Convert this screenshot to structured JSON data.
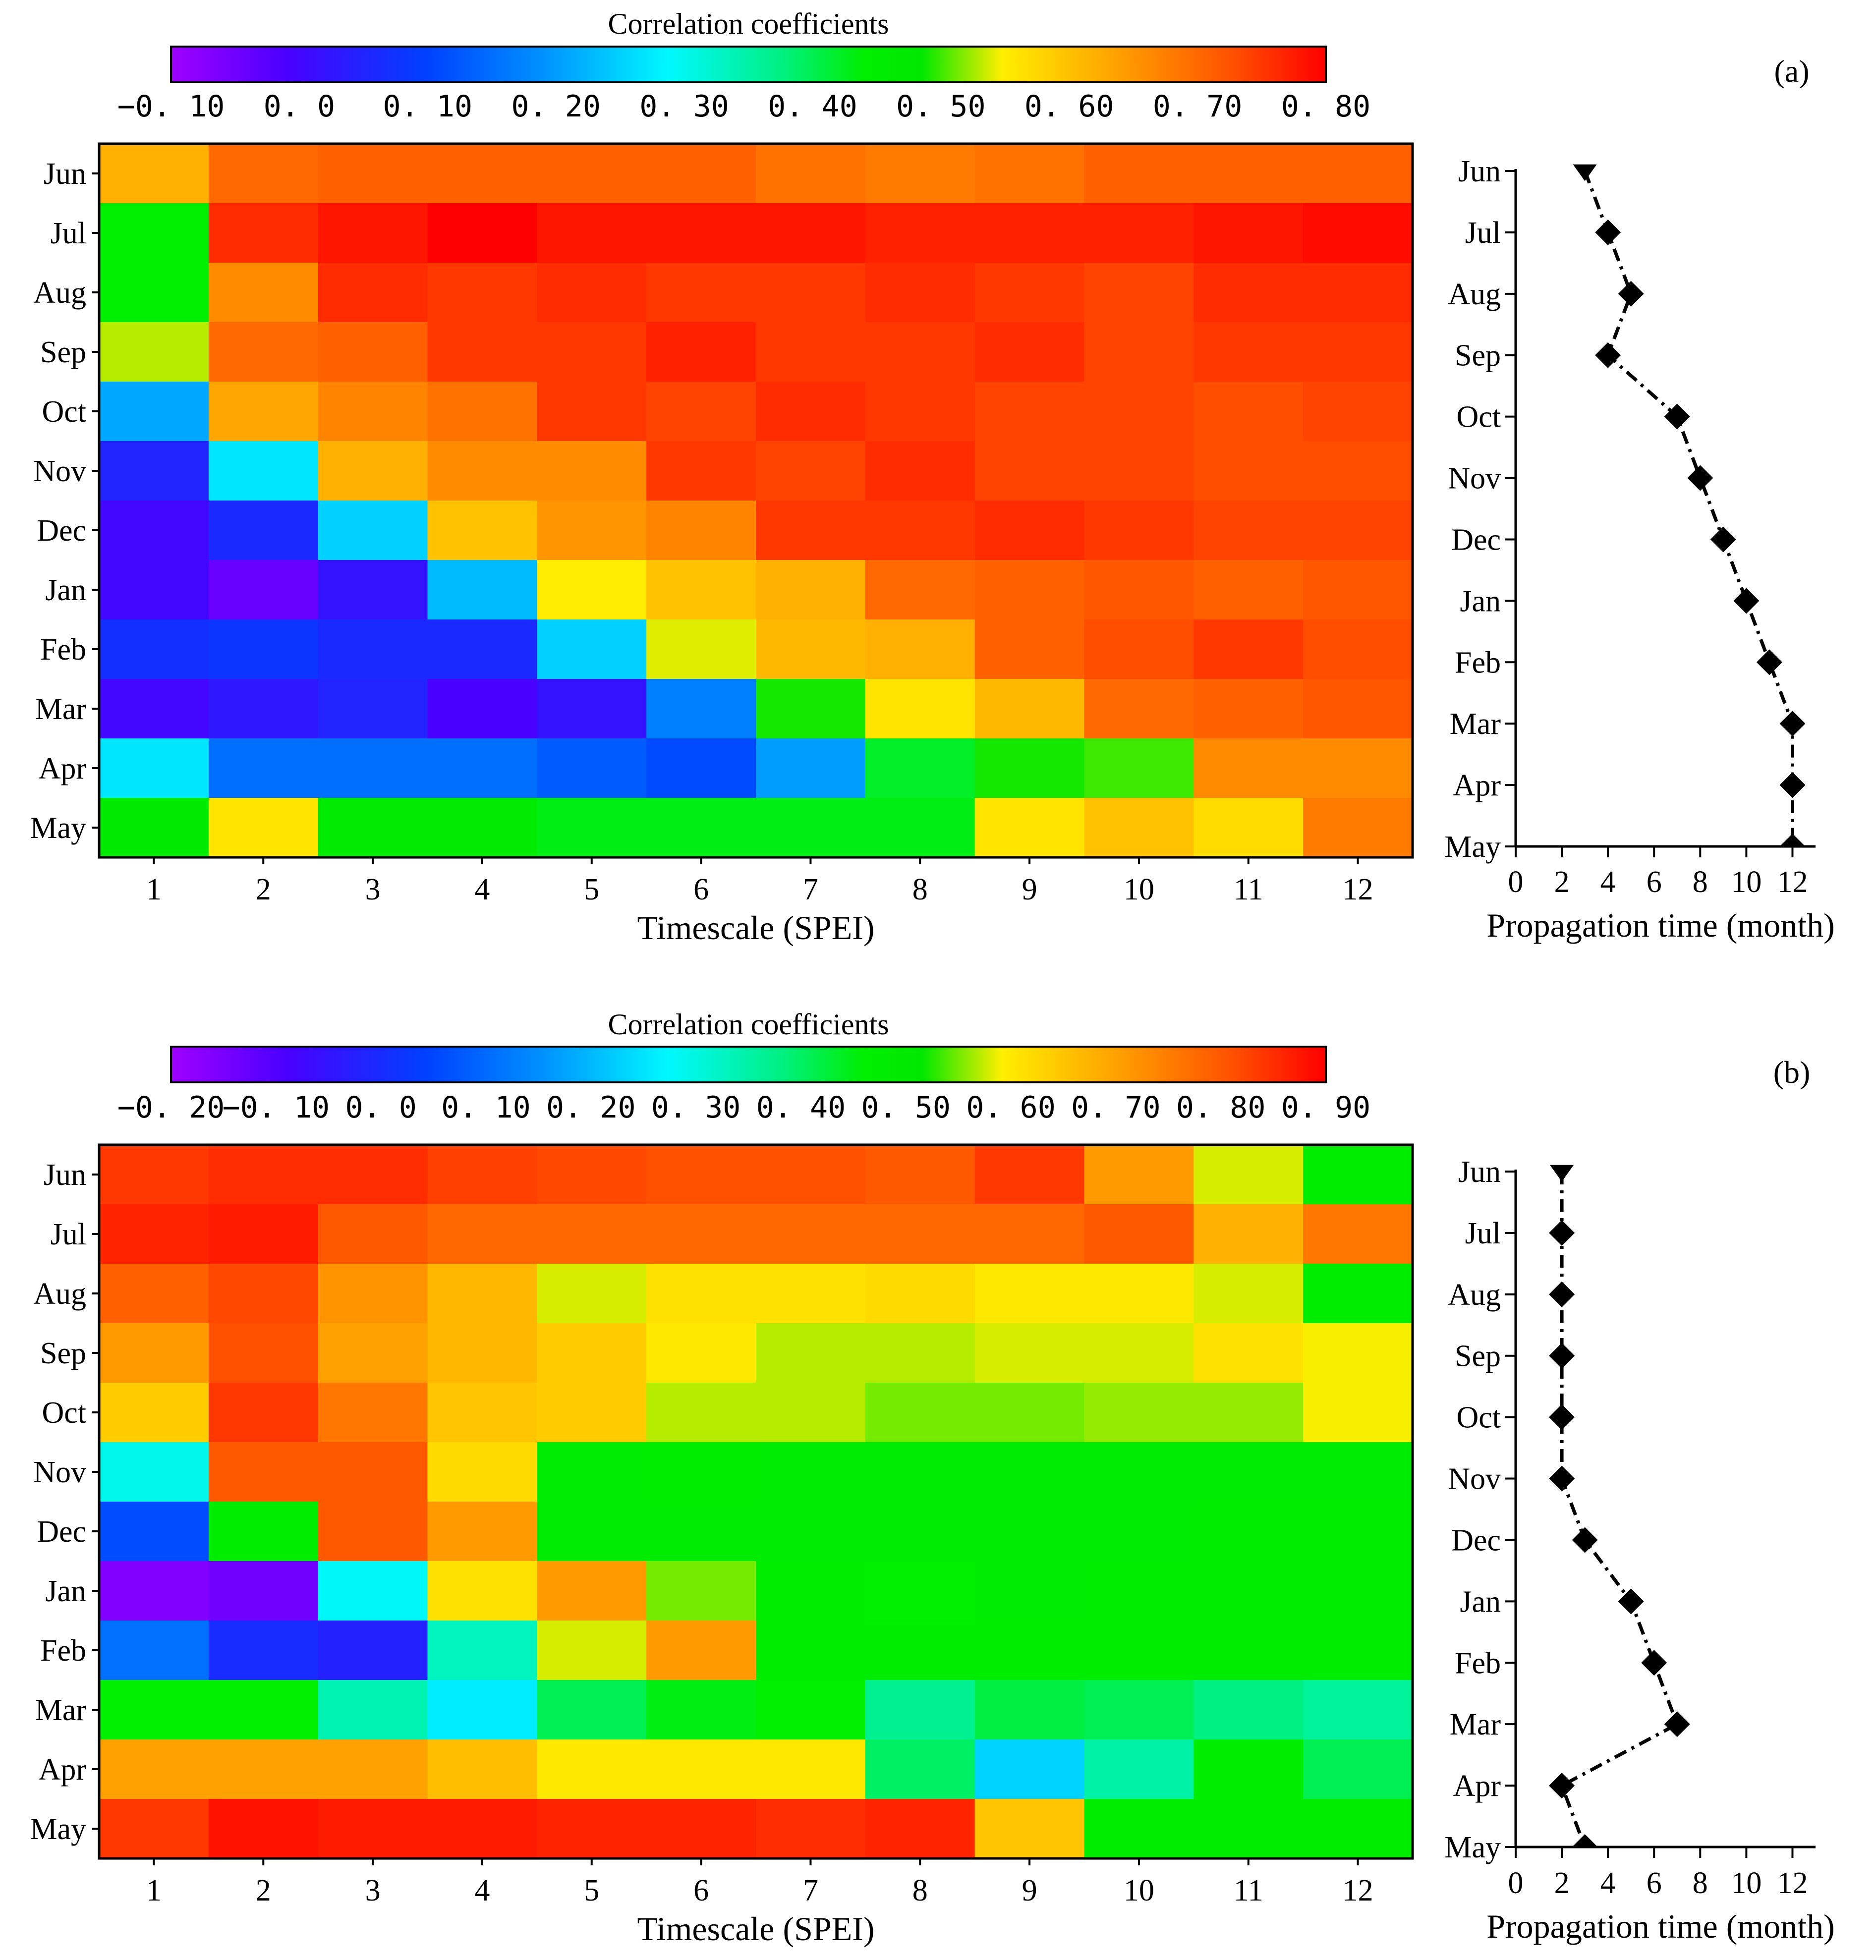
{
  "chart_data": [
    {
      "type": "heatmap",
      "panel_label": "(a)",
      "colorbar": {
        "title": "Correlation coefficients",
        "min": -0.1,
        "max": 0.8,
        "ticks": [
          -0.1,
          0.0,
          0.1,
          0.2,
          0.3,
          0.4,
          0.5,
          0.6,
          0.7,
          0.8
        ],
        "tick_labels": [
          "−0. 10",
          "0. 0",
          "0. 10",
          "0. 20",
          "0. 30",
          "0. 40",
          "0. 50",
          "0. 60",
          "0. 70",
          "0. 80"
        ]
      },
      "xlabel": "Timescale (SPEI)",
      "x": [
        1,
        2,
        3,
        4,
        5,
        6,
        7,
        8,
        9,
        10,
        11,
        12
      ],
      "y": [
        "Jun",
        "Jul",
        "Aug",
        "Sep",
        "Oct",
        "Nov",
        "Dec",
        "Jan",
        "Feb",
        "Mar",
        "Apr",
        "May"
      ],
      "values": [
        [
          0.62,
          0.7,
          0.71,
          0.71,
          0.71,
          0.71,
          0.69,
          0.68,
          0.69,
          0.71,
          0.71,
          0.71
        ],
        [
          0.44,
          0.76,
          0.78,
          0.8,
          0.78,
          0.78,
          0.78,
          0.77,
          0.77,
          0.77,
          0.78,
          0.79
        ],
        [
          0.44,
          0.66,
          0.76,
          0.75,
          0.76,
          0.75,
          0.75,
          0.76,
          0.75,
          0.74,
          0.76,
          0.76
        ],
        [
          0.53,
          0.7,
          0.71,
          0.75,
          0.75,
          0.77,
          0.75,
          0.75,
          0.76,
          0.74,
          0.75,
          0.75
        ],
        [
          0.21,
          0.63,
          0.67,
          0.69,
          0.75,
          0.74,
          0.76,
          0.75,
          0.74,
          0.74,
          0.73,
          0.74
        ],
        [
          0.05,
          0.27,
          0.62,
          0.66,
          0.66,
          0.75,
          0.74,
          0.76,
          0.74,
          0.74,
          0.73,
          0.73
        ],
        [
          0.0,
          0.06,
          0.25,
          0.6,
          0.65,
          0.67,
          0.75,
          0.75,
          0.76,
          0.75,
          0.74,
          0.74
        ],
        [
          0.0,
          -0.04,
          0.02,
          0.23,
          0.55,
          0.6,
          0.62,
          0.7,
          0.71,
          0.72,
          0.71,
          0.72
        ],
        [
          0.07,
          0.08,
          0.06,
          0.06,
          0.25,
          0.54,
          0.61,
          0.62,
          0.71,
          0.73,
          0.75,
          0.73
        ],
        [
          0.0,
          0.03,
          0.05,
          -0.01,
          0.02,
          0.17,
          0.49,
          0.56,
          0.61,
          0.7,
          0.71,
          0.72
        ],
        [
          0.27,
          0.15,
          0.15,
          0.15,
          0.13,
          0.11,
          0.2,
          0.42,
          0.49,
          0.5,
          0.66,
          0.66
        ],
        [
          0.47,
          0.56,
          0.46,
          0.46,
          0.43,
          0.43,
          0.43,
          0.43,
          0.56,
          0.6,
          0.57,
          0.68
        ]
      ],
      "propagation": {
        "xlabel": "Propagation time (month)",
        "xticks": [
          0,
          2,
          4,
          6,
          8,
          10,
          12
        ],
        "xlim": [
          0,
          13
        ],
        "months": [
          "Jun",
          "Jul",
          "Aug",
          "Sep",
          "Oct",
          "Nov",
          "Dec",
          "Jan",
          "Feb",
          "Mar",
          "Apr",
          "May"
        ],
        "values": [
          3,
          4,
          5,
          4,
          7,
          8,
          9,
          10,
          11,
          12,
          12,
          12
        ]
      }
    },
    {
      "type": "heatmap",
      "panel_label": "(b)",
      "colorbar": {
        "title": "Correlation coefficients",
        "min": -0.2,
        "max": 0.9,
        "ticks": [
          -0.2,
          -0.1,
          0.0,
          0.1,
          0.2,
          0.3,
          0.4,
          0.5,
          0.6,
          0.7,
          0.8,
          0.9
        ],
        "tick_labels": [
          "−0. 20",
          "−0. 10",
          "0. 0",
          "0. 10",
          "0. 20",
          "0. 30",
          "0. 40",
          "0. 50",
          "0. 60",
          "0. 70",
          "0. 80",
          "0. 90"
        ]
      },
      "xlabel": "Timescale (SPEI)",
      "x": [
        1,
        2,
        3,
        4,
        5,
        6,
        7,
        8,
        9,
        10,
        11,
        12
      ],
      "y": [
        "Jun",
        "Jul",
        "Aug",
        "Sep",
        "Oct",
        "Nov",
        "Dec",
        "Jan",
        "Feb",
        "Mar",
        "Apr",
        "May"
      ],
      "values": [
        [
          0.84,
          0.85,
          0.85,
          0.83,
          0.82,
          0.81,
          0.81,
          0.8,
          0.84,
          0.71,
          0.58,
          0.47
        ],
        [
          0.86,
          0.87,
          0.8,
          0.78,
          0.78,
          0.78,
          0.78,
          0.78,
          0.78,
          0.8,
          0.68,
          0.76
        ],
        [
          0.79,
          0.82,
          0.72,
          0.67,
          0.58,
          0.61,
          0.61,
          0.62,
          0.6,
          0.6,
          0.58,
          0.47
        ],
        [
          0.71,
          0.81,
          0.7,
          0.67,
          0.64,
          0.6,
          0.57,
          0.57,
          0.58,
          0.58,
          0.61,
          0.59
        ],
        [
          0.64,
          0.84,
          0.76,
          0.65,
          0.64,
          0.57,
          0.57,
          0.55,
          0.55,
          0.56,
          0.56,
          0.59
        ],
        [
          0.29,
          0.8,
          0.8,
          0.62,
          0.48,
          0.47,
          0.48,
          0.48,
          0.48,
          0.48,
          0.48,
          0.48
        ],
        [
          0.06,
          0.47,
          0.8,
          0.71,
          0.48,
          0.48,
          0.48,
          0.48,
          0.48,
          0.48,
          0.47,
          0.47
        ],
        [
          -0.16,
          -0.14,
          0.28,
          0.61,
          0.71,
          0.55,
          0.47,
          0.46,
          0.48,
          0.47,
          0.47,
          0.47
        ],
        [
          0.11,
          0.0,
          -0.02,
          0.33,
          0.58,
          0.71,
          0.47,
          0.47,
          0.47,
          0.47,
          0.47,
          0.47
        ],
        [
          0.46,
          0.46,
          0.34,
          0.26,
          0.41,
          0.45,
          0.46,
          0.37,
          0.42,
          0.41,
          0.38,
          0.36
        ],
        [
          0.7,
          0.7,
          0.7,
          0.66,
          0.6,
          0.6,
          0.6,
          0.4,
          0.23,
          0.35,
          0.47,
          0.41
        ],
        [
          0.84,
          0.88,
          0.87,
          0.87,
          0.86,
          0.86,
          0.85,
          0.86,
          0.65,
          0.47,
          0.47,
          0.47
        ]
      ],
      "propagation": {
        "xlabel": "Propagation time (month)",
        "xticks": [
          0,
          2,
          4,
          6,
          8,
          10,
          12
        ],
        "xlim": [
          0,
          13
        ],
        "months": [
          "Jun",
          "Jul",
          "Aug",
          "Sep",
          "Oct",
          "Nov",
          "Dec",
          "Jan",
          "Feb",
          "Mar",
          "Apr",
          "May"
        ],
        "values": [
          2,
          2,
          2,
          2,
          2,
          2,
          3,
          5,
          6,
          7,
          2,
          3
        ]
      }
    }
  ]
}
